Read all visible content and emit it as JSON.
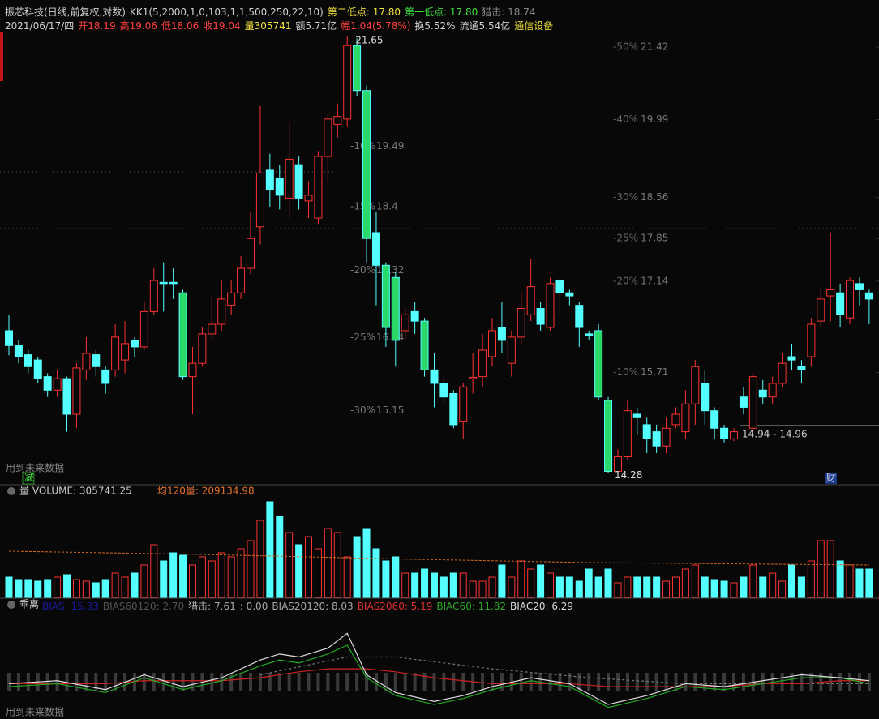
{
  "header": {
    "line1": [
      {
        "text": "振芯科技(日线,前复权,对数)",
        "color": "#d0d0d0"
      },
      {
        "text": "KK1(5,2000,1,0,103,1,1,500,250,22,10)",
        "color": "#d0d0d0"
      },
      {
        "text": "第二低点: 17.80",
        "color": "#f0e040"
      },
      {
        "text": "第一低点: 17.80",
        "color": "#40e040"
      },
      {
        "text": "猎击: 18.74",
        "color": "#888888"
      }
    ],
    "line2": [
      {
        "text": "2021/06/17/四",
        "color": "#d0d0d0"
      },
      {
        "text": "开18.19",
        "color": "#ff4040"
      },
      {
        "text": "高19.06",
        "color": "#ff4040"
      },
      {
        "text": "低18.06",
        "color": "#ff4040"
      },
      {
        "text": "收19.04",
        "color": "#ff4040"
      },
      {
        "text": "量305741",
        "color": "#f0e040"
      },
      {
        "text": "额5.71亿",
        "color": "#d0d0d0"
      },
      {
        "text": "幅1.04(5.78%)",
        "color": "#ff4040"
      },
      {
        "text": "换5.52%",
        "color": "#d0d0d0"
      },
      {
        "text": "流通5.54亿",
        "color": "#d0d0d0"
      },
      {
        "text": "通信设备",
        "color": "#f0e040"
      }
    ]
  },
  "chart_data": [
    {
      "type": "candlestick",
      "log_scale": true,
      "grid": false,
      "up_color": "#ff3232",
      "down_color": "#54ffff",
      "highlight_color": "#2bd96b",
      "highlight": [
        18,
        36,
        37,
        39,
        40,
        43,
        61,
        62
      ],
      "ylim": [
        14.13,
        21.72
      ],
      "yticks": [
        21.42,
        19.99,
        18.56,
        17.85,
        17.14,
        15.71
      ],
      "ytick_pcts": [
        "-50%",
        "-40%",
        "-30%",
        "-25%",
        "-20%",
        "-10%"
      ],
      "inner_levels": [
        {
          "label": "-10%",
          "value": 19.49
        },
        {
          "label": "-15%",
          "value": 18.4
        },
        {
          "label": "-20%",
          "value": 17.32
        },
        {
          "label": "-25%",
          "value": 16.24
        },
        {
          "label": "-30%",
          "value": 15.15
        }
      ],
      "high_label": 21.65,
      "low_label": 14.28,
      "range_label": "14.94 - 14.96",
      "note": "用到未来数据",
      "badges": [
        "减",
        "财"
      ],
      "open": [
        16.35,
        16.12,
        15.98,
        15.9,
        15.65,
        15.45,
        15.62,
        15.1,
        15.75,
        15.98,
        15.75,
        15.75,
        15.9,
        16.2,
        16.1,
        16.65,
        17.12,
        17.12,
        16.95,
        15.65,
        15.85,
        16.3,
        16.45,
        16.75,
        16.95,
        17.35,
        18.05,
        19.05,
        18.9,
        18.55,
        19.15,
        18.5,
        18.2,
        19.3,
        19.9,
        20.0,
        21.45,
        20.55,
        17.95,
        17.4,
        17.2,
        16.35,
        16.65,
        16.5,
        15.75,
        15.55,
        15.4,
        15.0,
        15.62,
        15.65,
        15.95,
        16.4,
        15.85,
        16.25,
        16.6,
        16.7,
        16.4,
        17.15,
        16.95,
        16.75,
        16.3,
        16.35,
        15.3,
        14.3,
        14.5,
        15.1,
        14.95,
        14.85,
        14.65,
        14.95,
        14.85,
        15.25,
        15.55,
        15.15,
        14.9,
        14.75,
        15.35,
        14.9,
        15.45,
        15.35,
        15.55,
        15.95,
        15.8,
        15.95,
        16.5,
        16.9,
        16.95,
        16.55,
        17.1,
        16.95
      ],
      "high": [
        16.6,
        16.2,
        16.05,
        15.95,
        15.7,
        15.75,
        15.65,
        15.85,
        16.25,
        16.05,
        15.8,
        16.45,
        16.5,
        16.25,
        16.8,
        17.35,
        17.45,
        17.35,
        17.0,
        16.1,
        16.4,
        16.9,
        17.15,
        17.15,
        17.55,
        18.3,
        20.25,
        19.35,
        19.15,
        19.95,
        19.3,
        18.85,
        19.4,
        20.1,
        20.3,
        21.65,
        21.6,
        20.65,
        18.3,
        17.45,
        17.3,
        16.7,
        16.8,
        16.55,
        16.0,
        15.65,
        15.45,
        15.55,
        16.0,
        16.3,
        16.55,
        16.8,
        16.35,
        16.95,
        17.5,
        16.8,
        17.2,
        17.2,
        17.0,
        16.8,
        16.35,
        16.45,
        15.35,
        14.6,
        15.3,
        15.2,
        15.05,
        14.95,
        15.05,
        15.2,
        15.45,
        15.9,
        15.75,
        15.2,
        14.95,
        14.9,
        15.5,
        15.7,
        15.6,
        15.65,
        16.0,
        16.15,
        15.9,
        16.55,
        17.05,
        17.95,
        17.1,
        17.2,
        17.2,
        17.0
      ],
      "low": [
        15.97,
        15.85,
        15.7,
        15.55,
        15.35,
        15.35,
        14.85,
        14.9,
        15.6,
        15.65,
        15.4,
        15.65,
        15.7,
        15.95,
        16.05,
        16.6,
        16.65,
        16.85,
        15.6,
        15.1,
        15.8,
        16.2,
        16.35,
        16.6,
        16.85,
        17.25,
        17.75,
        18.4,
        18.35,
        18.2,
        18.35,
        18.2,
        18.1,
        18.85,
        19.65,
        19.85,
        20.45,
        17.45,
        16.75,
        16.1,
        15.8,
        16.2,
        16.3,
        15.65,
        15.2,
        15.25,
        14.9,
        14.75,
        15.4,
        15.5,
        15.8,
        16.0,
        15.65,
        16.15,
        16.5,
        16.35,
        16.35,
        16.6,
        16.75,
        16.1,
        16.2,
        15.3,
        14.28,
        14.28,
        14.45,
        14.8,
        14.55,
        14.55,
        14.55,
        14.9,
        14.75,
        14.95,
        14.95,
        14.75,
        14.7,
        14.72,
        15.1,
        14.85,
        15.25,
        15.25,
        15.5,
        15.75,
        15.55,
        15.8,
        16.4,
        16.5,
        16.4,
        16.45,
        16.75,
        16.45
      ],
      "close": [
        16.12,
        15.95,
        15.8,
        15.62,
        15.45,
        15.62,
        15.1,
        15.78,
        16.0,
        15.8,
        15.55,
        16.25,
        16.15,
        16.1,
        16.65,
        17.15,
        17.1,
        17.1,
        15.65,
        15.85,
        16.3,
        16.45,
        16.85,
        16.95,
        17.35,
        17.85,
        19.0,
        18.7,
        18.6,
        19.25,
        18.55,
        18.6,
        19.3,
        20.0,
        20.05,
        21.45,
        20.55,
        17.85,
        17.4,
        16.4,
        16.2,
        16.6,
        16.5,
        15.75,
        15.55,
        15.35,
        14.95,
        15.5,
        15.64,
        16.05,
        16.35,
        16.2,
        16.25,
        16.7,
        17.05,
        16.45,
        17.1,
        16.95,
        16.9,
        16.4,
        16.28,
        15.35,
        14.3,
        14.5,
        15.15,
        15.05,
        14.75,
        14.65,
        14.9,
        15.1,
        15.25,
        15.8,
        15.15,
        14.9,
        14.75,
        14.85,
        15.2,
        15.65,
        15.35,
        15.55,
        15.85,
        15.9,
        15.75,
        16.45,
        16.85,
        17.0,
        16.6,
        17.15,
        17.0,
        16.85
      ]
    },
    {
      "type": "bar",
      "title": "量 VOLUME: 305741.25",
      "ma_label": "均120量: 209134.98",
      "ylim": [
        0,
        488000
      ],
      "values": [
        100000,
        88000,
        88000,
        80000,
        88000,
        100000,
        112000,
        88000,
        80000,
        72000,
        88000,
        120000,
        100000,
        120000,
        160000,
        260000,
        180000,
        220000,
        208000,
        160000,
        200000,
        180000,
        220000,
        200000,
        240000,
        280000,
        380000,
        472000,
        400000,
        320000,
        260000,
        300000,
        240000,
        340000,
        320000,
        200000,
        300000,
        340000,
        240000,
        180000,
        200000,
        120000,
        120000,
        140000,
        120000,
        100000,
        120000,
        120000,
        80000,
        80000,
        100000,
        160000,
        100000,
        180000,
        140000,
        160000,
        120000,
        100000,
        100000,
        80000,
        140000,
        100000,
        140000,
        72000,
        100000,
        100000,
        100000,
        100000,
        80000,
        100000,
        140000,
        160000,
        100000,
        88000,
        80000,
        72000,
        100000,
        160000,
        100000,
        120000,
        80000,
        160000,
        100000,
        180000,
        280000,
        280000,
        180000,
        160000,
        140000,
        140000
      ],
      "ma": {
        "color": "#d2691e",
        "x": [
          0,
          20,
          40,
          60,
          89
        ],
        "values": [
          228000,
          212000,
          190000,
          172000,
          160000
        ]
      }
    },
    {
      "type": "line",
      "title": "乖离",
      "ylim": [
        -10,
        25
      ],
      "legend": [
        {
          "text": "BIAS: 15.33",
          "color": "#1a1a9c"
        },
        {
          "text": "BIAS60120: 2.70",
          "color": "#555555"
        },
        {
          "text": "猎击: 7.61",
          "color": "#aaaaaa"
        },
        {
          "text": ": 0.00",
          "color": "#aaaaaa"
        },
        {
          "text": "BIAS20120: 8.03",
          "color": "#aaaaaa"
        },
        {
          "text": "BIAS2060: 5.19",
          "color": "#e03030"
        },
        {
          "text": "BIAC60: 11.82",
          "color": "#2ea82e"
        },
        {
          "text": "BIAC20: 6.29",
          "color": "#dddddd"
        }
      ],
      "series": [
        {
          "color": "#777777",
          "dash": true,
          "x": [
            26,
            35,
            40,
            50,
            60,
            70,
            80,
            89
          ],
          "values": [
            3,
            9,
            9,
            5,
            2,
            0,
            0,
            0
          ]
        },
        {
          "color": "#cc2222",
          "x": [
            0,
            5,
            10,
            14,
            18,
            22,
            26,
            28,
            30,
            33,
            35,
            37,
            40,
            44,
            47,
            50,
            54,
            58,
            62,
            66,
            70,
            74,
            78,
            82,
            86,
            89
          ],
          "values": [
            0,
            0,
            0,
            1,
            1,
            1,
            2,
            3,
            4,
            5,
            5,
            5,
            4,
            2,
            1,
            0,
            0,
            0,
            -1,
            -1,
            -1,
            -1,
            0,
            0,
            1,
            1
          ]
        },
        {
          "color": "#22aa22",
          "x": [
            0,
            5,
            10,
            14,
            18,
            22,
            26,
            28,
            30,
            33,
            35,
            37,
            40,
            44,
            47,
            50,
            54,
            58,
            62,
            66,
            70,
            74,
            78,
            82,
            86,
            89
          ],
          "values": [
            -1,
            0,
            -3,
            2,
            -2,
            1,
            6,
            8,
            7,
            10,
            13,
            2,
            -4,
            -7,
            -5,
            -2,
            1,
            -1,
            -8,
            -5,
            -1,
            -2,
            0,
            2,
            2,
            0
          ]
        },
        {
          "color": "#dddddd",
          "x": [
            0,
            5,
            10,
            14,
            18,
            22,
            26,
            28,
            30,
            33,
            35,
            37,
            40,
            44,
            47,
            50,
            54,
            58,
            62,
            66,
            70,
            74,
            78,
            82,
            86,
            89
          ],
          "values": [
            0,
            1,
            -2,
            3,
            -1,
            2,
            8,
            10,
            9,
            12,
            17,
            3,
            -3,
            -6,
            -4,
            -1,
            2,
            0,
            -7,
            -4,
            0,
            -1,
            1,
            3,
            2,
            1
          ]
        }
      ]
    }
  ]
}
